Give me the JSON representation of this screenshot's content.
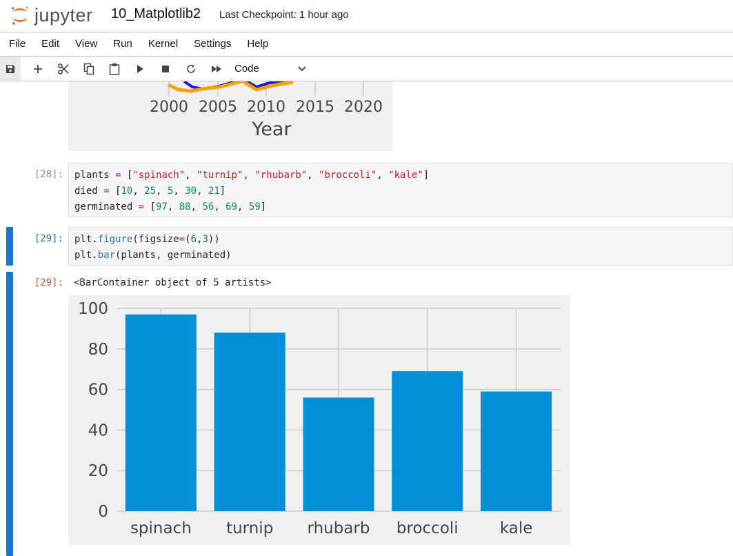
{
  "header": {
    "logo_text": "jupyter",
    "notebook_title": "10_Matplotlib2",
    "checkpoint": "Last Checkpoint: 1 hour ago"
  },
  "menu": [
    "File",
    "Edit",
    "View",
    "Run",
    "Kernel",
    "Settings",
    "Help"
  ],
  "toolbar": {
    "buttons": [
      "save-icon",
      "add-cell-icon",
      "cut-icon",
      "copy-icon",
      "paste-icon",
      "run-icon",
      "stop-icon",
      "restart-icon",
      "fast-forward-icon"
    ],
    "cell_type": "Code"
  },
  "prev_figure": {
    "xticks": [
      "2000",
      "2005",
      "2010",
      "2015",
      "2020"
    ],
    "xlabel": "Year"
  },
  "cells": [
    {
      "prompt": "[28]:",
      "lines": [
        "plants = [\"spinach\", \"turnip\", \"rhubarb\", \"broccoli\", \"kale\"]",
        "died = [10, 25, 5, 30, 21]",
        "germinated = [97, 88, 56, 69, 59]"
      ]
    },
    {
      "prompt": "[29]:",
      "lines": [
        "plt.figure(figsize=(6,3))",
        "plt.bar(plants, germinated)"
      ],
      "output_prompt": "[29]:",
      "output_text": "<BarContainer object of 5 artists>"
    }
  ],
  "chart_data": {
    "type": "bar",
    "categories": [
      "spinach",
      "turnip",
      "rhubarb",
      "broccoli",
      "kale"
    ],
    "values": [
      97,
      88,
      56,
      69,
      59
    ],
    "title": "",
    "xlabel": "",
    "ylabel": "",
    "ylim": [
      0,
      100
    ],
    "yticks": [
      "0",
      "20",
      "40",
      "60",
      "80",
      "100"
    ],
    "grid": true,
    "bar_color": "#008fd5",
    "style": "fivethirtyeight"
  },
  "colors": {
    "accent": "#1976d2",
    "logo_orange": "#f37626",
    "prev_line_orange": "#fc9e00"
  }
}
